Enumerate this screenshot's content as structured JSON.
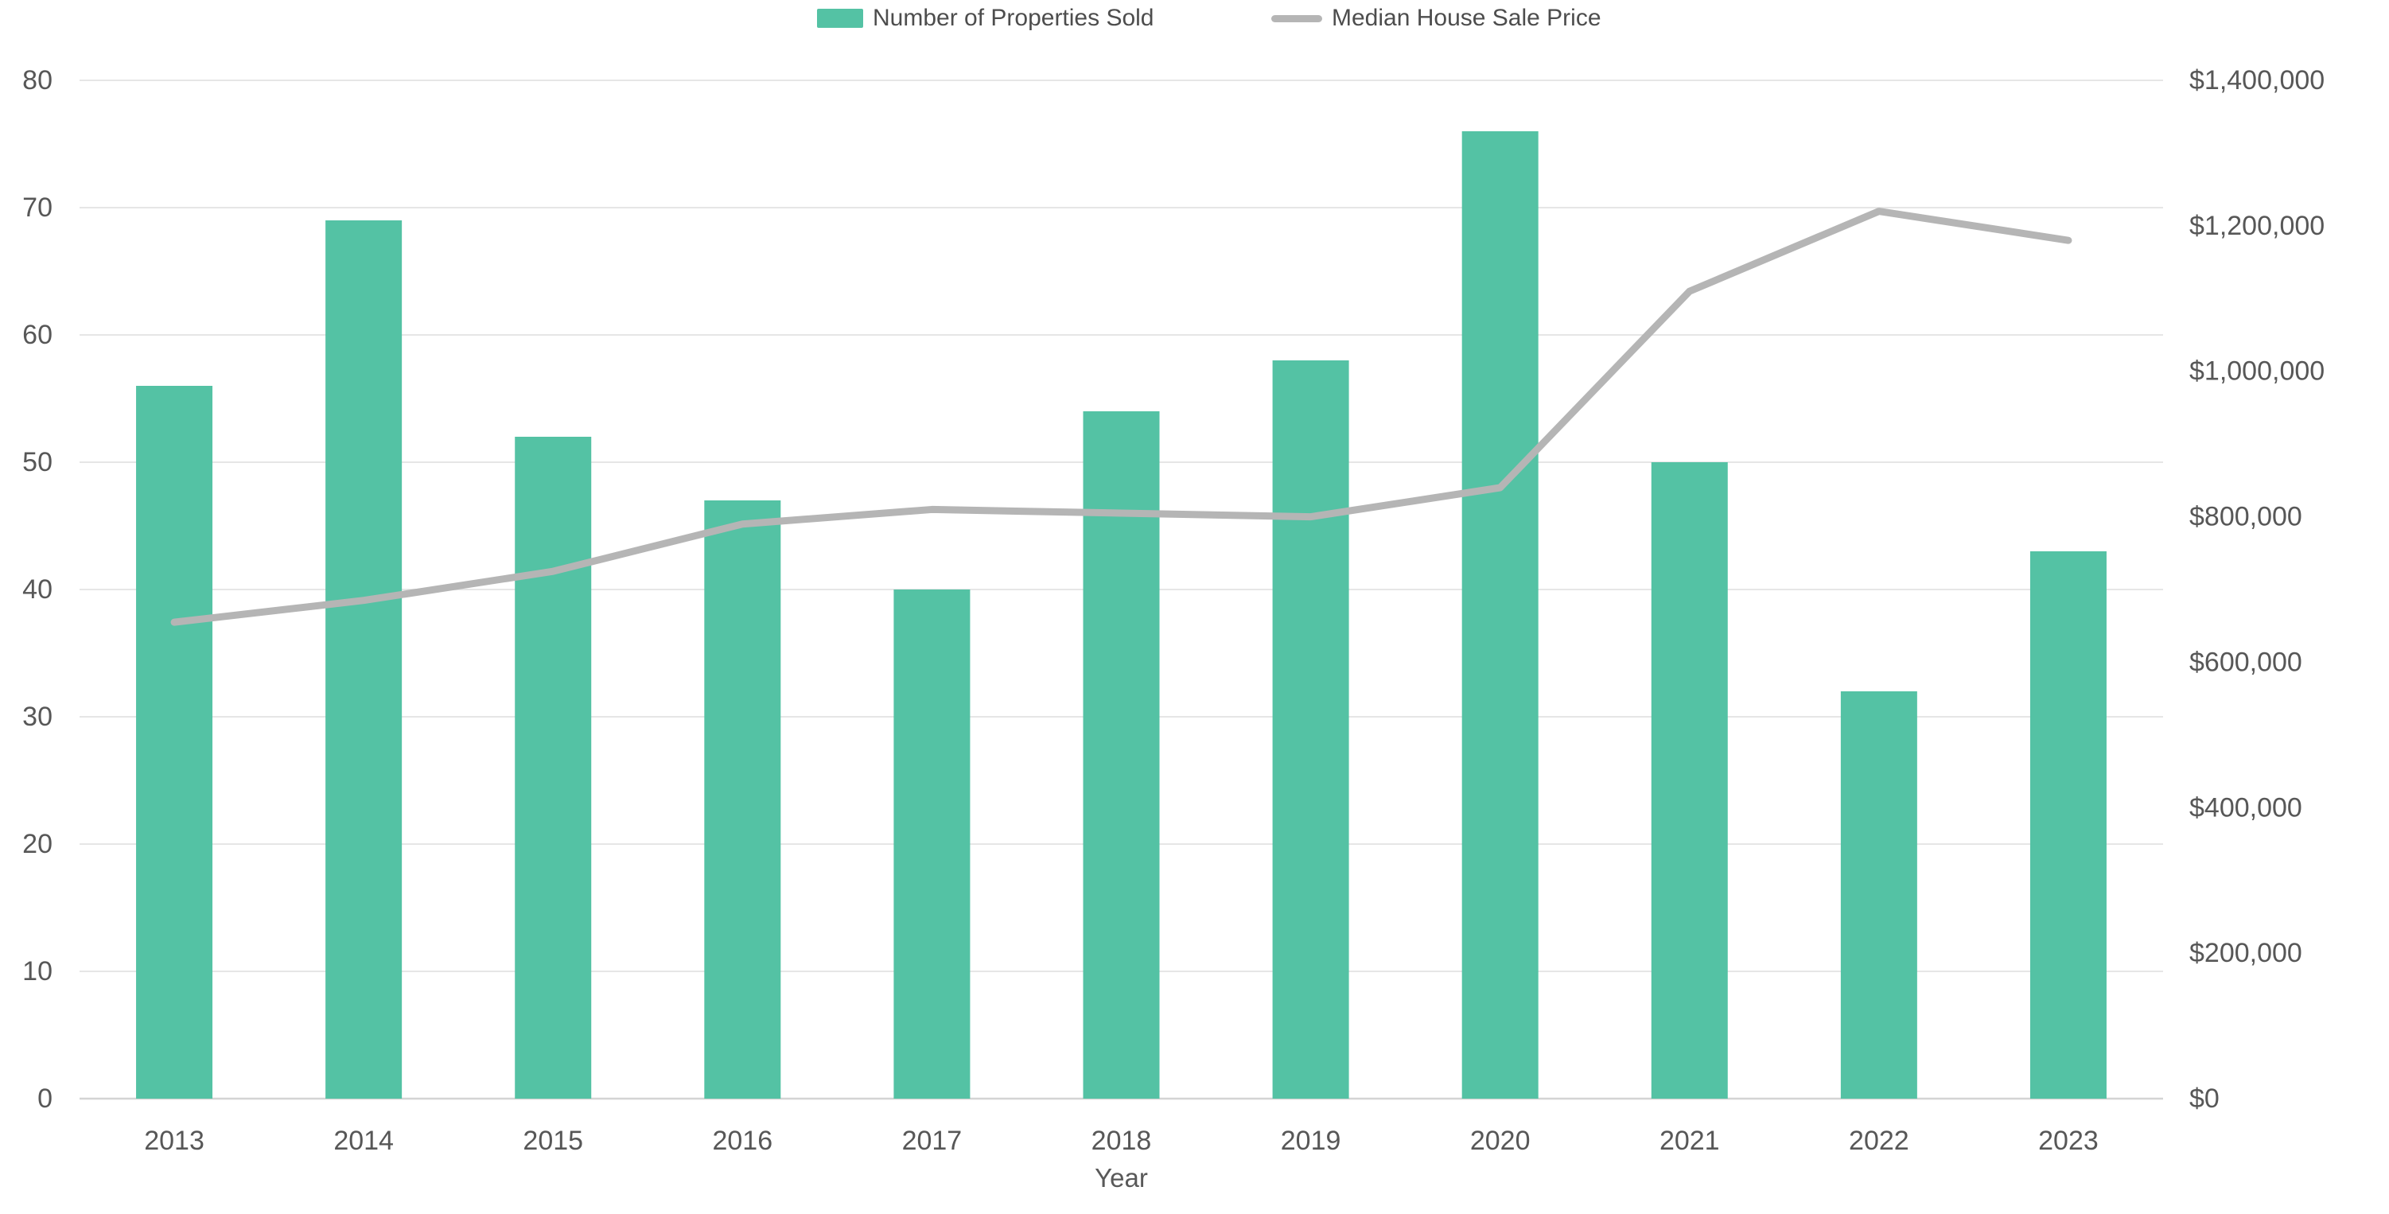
{
  "legend": {
    "position": "top",
    "items": [
      {
        "label": "Number of Properties Sold",
        "swatch": "bar"
      },
      {
        "label": "Median House Sale Price",
        "swatch": "line"
      }
    ]
  },
  "chart_data": {
    "type": "combo",
    "title": "",
    "categories": [
      "2013",
      "2014",
      "2015",
      "2016",
      "2017",
      "2018",
      "2019",
      "2020",
      "2021",
      "2022",
      "2023"
    ],
    "series": [
      {
        "name": "Number of Properties Sold",
        "type": "bar",
        "axis": "left",
        "color": "#54c2a4",
        "values": [
          56,
          69,
          52,
          47,
          40,
          54,
          58,
          76,
          50,
          32,
          43
        ]
      },
      {
        "name": "Median House Sale Price",
        "type": "line",
        "axis": "right",
        "color": "#b5b5b5",
        "values": [
          655000,
          685000,
          725000,
          790000,
          810000,
          805000,
          800000,
          840000,
          1110000,
          1220000,
          1180000
        ]
      }
    ],
    "xlabel": "Year",
    "left_axis": {
      "min": 0,
      "max": 80,
      "step": 10,
      "tick_labels": [
        "0",
        "10",
        "20",
        "30",
        "40",
        "50",
        "60",
        "70",
        "80"
      ]
    },
    "right_axis": {
      "min": 0,
      "max": 1400000,
      "step": 200000,
      "tick_labels": [
        "$0",
        "$200,000",
        "$400,000",
        "$600,000",
        "$800,000",
        "$1,000,000",
        "$1,200,000",
        "$1,400,000"
      ]
    },
    "grid": true,
    "legend_position": "top"
  },
  "colors": {
    "bar": "#54c2a4",
    "line": "#b5b5b5",
    "grid": "#e6e6e6",
    "axis_line": "#d4d4d4",
    "tick_text": "#575757",
    "legend_text": "#4d4d4d",
    "background": "#ffffff"
  }
}
